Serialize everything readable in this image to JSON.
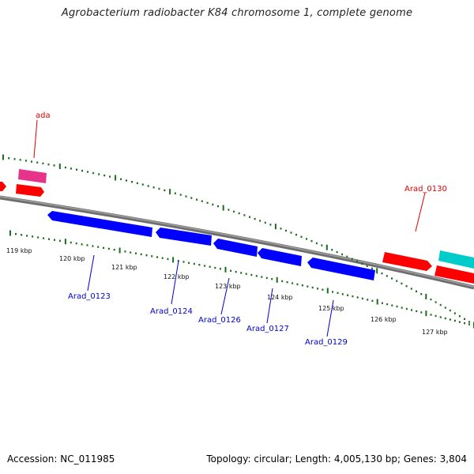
{
  "title": "Agrobacterium radiobacter K84 chromosome 1, complete genome",
  "footer": {
    "accession": "Accession: NC_011985",
    "summary": "Topology: circular; Length: 4,005,130 bp; Genes: 3,804"
  },
  "colors": {
    "backbone": "#808080",
    "tick_dot": "#1e6b1e",
    "forward_gene": "#ff0000",
    "reverse_gene": "#0000ff",
    "rna_gene": "#e8338a",
    "other_gene": "#00cccc",
    "label_red": "#dd0000",
    "label_blue": "#0000cc"
  },
  "scale": {
    "labels": [
      "119 kbp",
      "120 kbp",
      "121 kbp",
      "122 kbp",
      "123 kbp",
      "124 kbp",
      "125 kbp",
      "126 kbp",
      "127 kbp"
    ]
  },
  "gene_labels": {
    "ada": "ada",
    "arad_0130": "Arad_0130",
    "arad_0123": "Arad_0123",
    "arad_0124": "Arad_0124",
    "arad_0126": "Arad_0126",
    "arad_0127": "Arad_0127",
    "arad_0129": "Arad_0129"
  }
}
